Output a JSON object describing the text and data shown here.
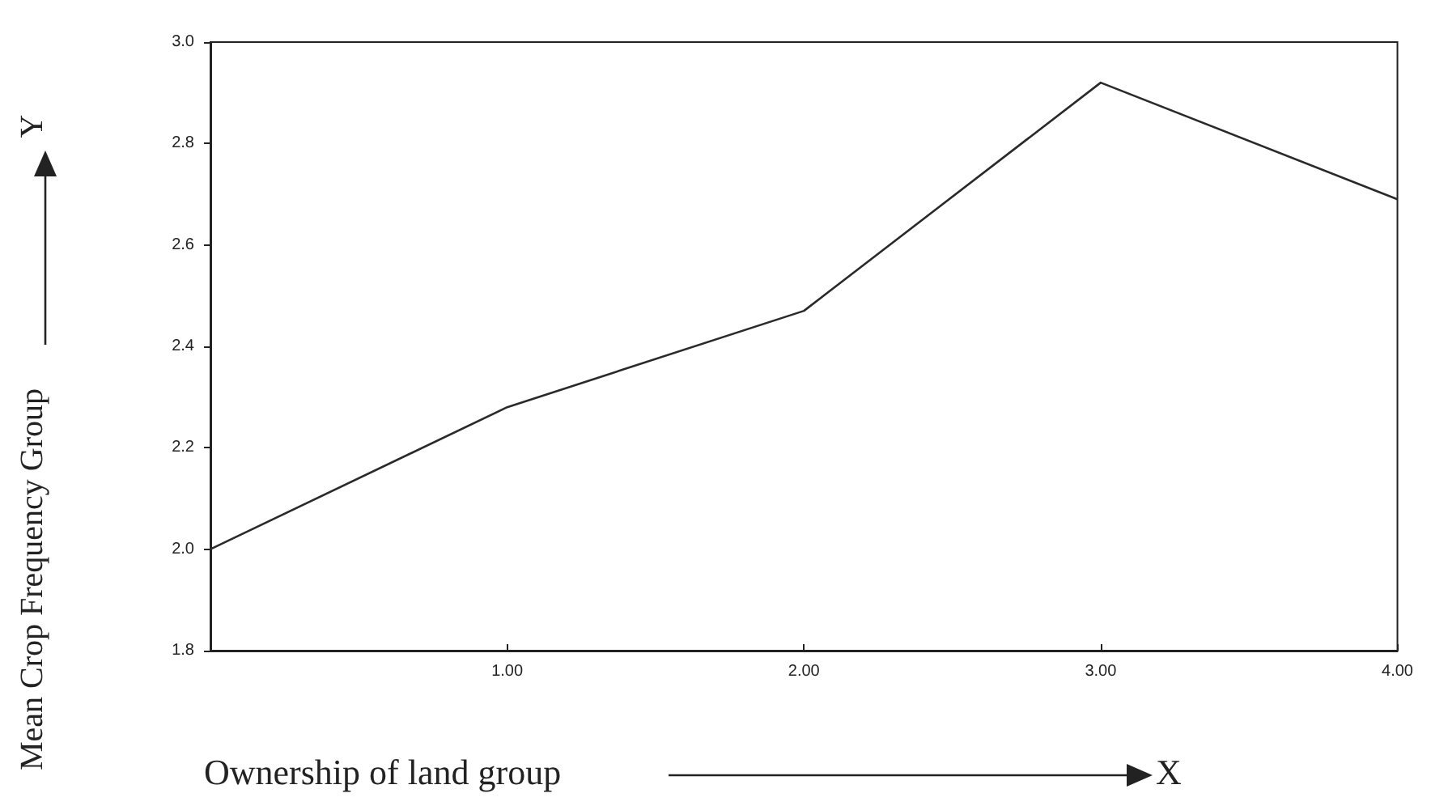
{
  "chart_data": {
    "type": "line",
    "xlabel": "Ownership of land group",
    "ylabel": "Mean Crop Frequency Group",
    "annotations": [
      "X",
      "Y"
    ],
    "x": [
      0,
      1,
      2,
      3,
      4
    ],
    "series": [
      {
        "color": "#2a2a2a",
        "values": [
          2.0,
          2.28,
          2.47,
          2.92,
          2.69
        ]
      }
    ],
    "xlim": [
      0,
      4
    ],
    "xticks": [
      {
        "value": 0,
        "label": null
      },
      {
        "value": 1,
        "label": "1.00"
      },
      {
        "value": 2,
        "label": "2.00"
      },
      {
        "value": 3,
        "label": "3.00"
      },
      {
        "value": 4,
        "label": "4.00"
      }
    ],
    "ylim": [
      1.8,
      3.0
    ],
    "yticks": [
      1.8,
      {
        "value": 2,
        "label": "2.0"
      },
      2.2,
      2.4,
      2.6,
      2.8,
      {
        "value": 3,
        "label": "3.0"
      }
    ],
    "grid": false,
    "marker": "none",
    "line_style": "solid"
  }
}
